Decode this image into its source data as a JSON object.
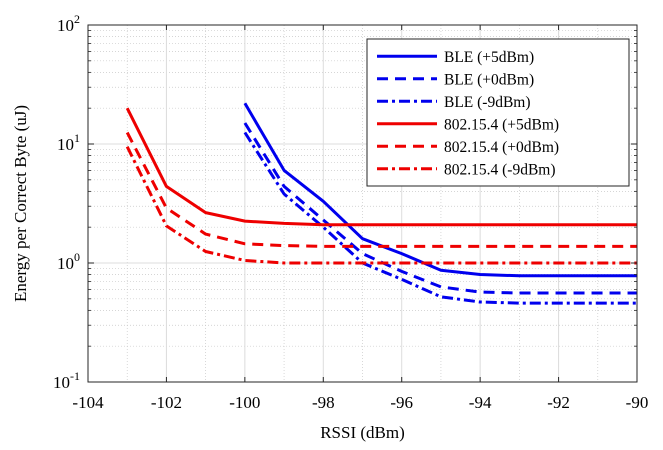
{
  "chart_data": {
    "type": "line",
    "xlabel": "RSSI (dBm)",
    "ylabel": "Energy per Correct Byte (uJ)",
    "xlim": [
      -104,
      -90
    ],
    "ylim": [
      0.1,
      100
    ],
    "yscale": "log",
    "grid": true,
    "minor_grid": true,
    "legend_position": "top-right",
    "x_ticks": [
      "-104",
      "-102",
      "-100",
      "-98",
      "-96",
      "-94",
      "-92",
      "-90"
    ],
    "x_tick_values": [
      -104,
      -102,
      -100,
      -98,
      -96,
      -94,
      -92,
      -90
    ],
    "y_ticks": [
      {
        "base": "10",
        "exp": "-1",
        "value": 0.1
      },
      {
        "base": "10",
        "exp": "0",
        "value": 1
      },
      {
        "base": "10",
        "exp": "1",
        "value": 10
      },
      {
        "base": "10",
        "exp": "2",
        "value": 100
      }
    ],
    "series": [
      {
        "name": "BLE (+5dBm)",
        "color": "#0000ee",
        "dash": "solid",
        "x": [
          -100,
          -99,
          -98,
          -97,
          -96,
          -95,
          -94,
          -93,
          -92,
          -91,
          -90
        ],
        "y": [
          22,
          6.0,
          3.3,
          1.6,
          1.2,
          0.87,
          0.8,
          0.78,
          0.78,
          0.78,
          0.78
        ]
      },
      {
        "name": "BLE (+0dBm)",
        "color": "#0000ee",
        "dash": "dashed",
        "x": [
          -100,
          -99,
          -98,
          -97,
          -96,
          -95,
          -94,
          -93,
          -92,
          -91,
          -90
        ],
        "y": [
          15,
          4.4,
          2.3,
          1.2,
          0.85,
          0.63,
          0.57,
          0.56,
          0.56,
          0.56,
          0.56
        ]
      },
      {
        "name": "BLE (-9dBm)",
        "color": "#0000ee",
        "dash": "dashdot",
        "x": [
          -100,
          -99,
          -98,
          -97,
          -96,
          -95,
          -94,
          -93,
          -92,
          -91,
          -90
        ],
        "y": [
          12.5,
          3.8,
          2.0,
          1.0,
          0.73,
          0.52,
          0.47,
          0.46,
          0.46,
          0.46,
          0.46
        ]
      },
      {
        "name": "802.15.4 (+5dBm)",
        "color": "#ee0000",
        "dash": "solid",
        "x": [
          -103,
          -102,
          -101,
          -100,
          -99,
          -98,
          -97,
          -96,
          -95,
          -94,
          -93,
          -92,
          -91,
          -90
        ],
        "y": [
          20,
          4.4,
          2.65,
          2.25,
          2.15,
          2.1,
          2.1,
          2.1,
          2.1,
          2.1,
          2.1,
          2.1,
          2.1,
          2.1
        ]
      },
      {
        "name": "802.15.4 (+0dBm)",
        "color": "#ee0000",
        "dash": "dashed",
        "x": [
          -103,
          -102,
          -101,
          -100,
          -99,
          -98,
          -97,
          -96,
          -95,
          -94,
          -93,
          -92,
          -91,
          -90
        ],
        "y": [
          12.5,
          2.9,
          1.75,
          1.45,
          1.4,
          1.38,
          1.38,
          1.38,
          1.38,
          1.38,
          1.38,
          1.38,
          1.38,
          1.38
        ]
      },
      {
        "name": "802.15.4 (-9dBm)",
        "color": "#ee0000",
        "dash": "dashdot",
        "x": [
          -103,
          -102,
          -101,
          -100,
          -99,
          -98,
          -97,
          -96,
          -95,
          -94,
          -93,
          -92,
          -91,
          -90
        ],
        "y": [
          9.5,
          2.05,
          1.25,
          1.05,
          1.0,
          1.0,
          1.0,
          1.0,
          1.0,
          1.0,
          1.0,
          1.0,
          1.0,
          1.0
        ]
      }
    ]
  }
}
